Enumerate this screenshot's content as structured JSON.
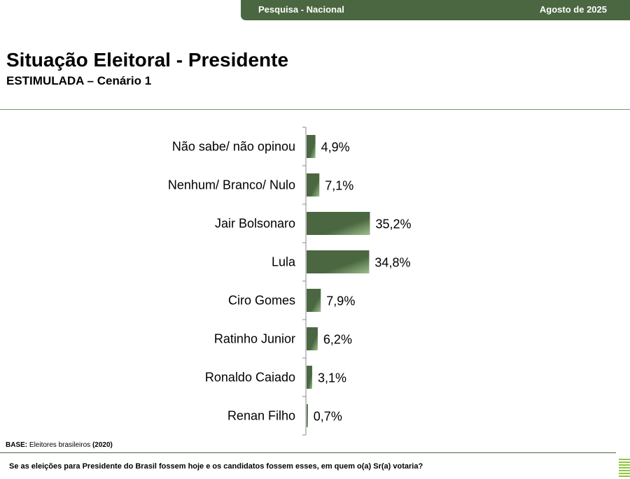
{
  "header": {
    "survey_label": "Pesquisa - Nacional",
    "date_label": "Agosto de 2025",
    "bar_color": "#4a6741"
  },
  "title": "Situação Eleitoral - Presidente",
  "subtitle": "ESTIMULADA – Cenário 1",
  "base_note": {
    "prefix": "BASE:",
    "text": " Eleitores brasileiros ",
    "suffix": "(2020)"
  },
  "question": "Se as eleições para Presidente do Brasil fossem hoje e os candidatos fossem esses, em quem o(a) Sr(a) votaria?",
  "logo": {
    "icon": "striped-logo-icon",
    "color": "#8dc63f"
  },
  "chart_data": {
    "type": "bar",
    "orientation": "horizontal",
    "categories": [
      "Não sabe/ não opinou",
      "Nenhum/ Branco/ Nulo",
      "Jair Bolsonaro",
      "Lula",
      "Ciro Gomes",
      "Ratinho Junior",
      "Ronaldo Caiado",
      "Renan Filho"
    ],
    "values": [
      4.9,
      7.1,
      35.2,
      34.8,
      7.9,
      6.2,
      3.1,
      0.7
    ],
    "value_labels": [
      "4,9%",
      "7,1%",
      "35,2%",
      "34,8%",
      "7,9%",
      "6,2%",
      "3,1%",
      "0,7%"
    ],
    "unit": "%",
    "bar_color": "#4a6741",
    "bar_highlight": "#9dbf8c",
    "grid": false,
    "legend": "none"
  }
}
